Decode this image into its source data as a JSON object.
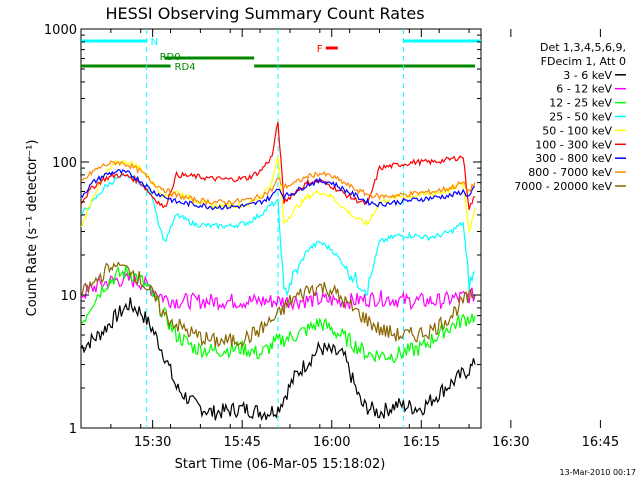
{
  "chart_data": {
    "type": "line",
    "title": "HESSI Observing Summary Count Rates",
    "xlabel": "Start Time (06-Mar-05 15:18:02)",
    "ylabel": "Count Rate (s⁻¹ detector⁻¹)",
    "yscale": "log",
    "ylim": [
      1,
      1000
    ],
    "xlim_minutes_after_start": [
      0,
      67
    ],
    "x_ticks": [
      {
        "label": "15:30",
        "minute": 12
      },
      {
        "label": "15:45",
        "minute": 27
      },
      {
        "label": "16:00",
        "minute": 42
      },
      {
        "label": "16:15",
        "minute": 57
      },
      {
        "label": "16:30",
        "minute": 72
      },
      {
        "label": "16:45",
        "minute": 87
      }
    ],
    "y_ticks": [
      {
        "label": "1",
        "value": 1
      },
      {
        "label": "10",
        "value": 10
      },
      {
        "label": "100",
        "value": 100
      },
      {
        "label": "1000",
        "value": 1000
      }
    ],
    "legend": {
      "placement": "right",
      "header": [
        "Det 1,3,4,5,6,9,",
        "FDecim 1, Att 0"
      ]
    },
    "series": [
      {
        "name": "3 - 6 keV",
        "color": "#000000",
        "x": [
          0,
          3,
          6,
          8,
          10,
          12,
          14,
          16,
          19,
          22,
          27,
          31,
          33,
          36,
          40,
          44,
          47,
          50,
          53,
          57,
          61,
          66
        ],
        "y": [
          4,
          5,
          7,
          8.5,
          7.5,
          5.5,
          3.5,
          2,
          1.5,
          1.3,
          1.4,
          1.3,
          1.4,
          2.5,
          4,
          3.5,
          1.5,
          1.3,
          1.5,
          1.4,
          2,
          3
        ]
      },
      {
        "name": "6 - 12 keV",
        "color": "#ff00ff",
        "x": [
          0,
          3,
          6,
          8,
          10,
          12,
          14,
          16,
          20,
          25,
          30,
          35,
          40,
          45,
          50,
          55,
          60,
          63,
          66
        ],
        "y": [
          10,
          12,
          13,
          13,
          12.5,
          11,
          9.5,
          9,
          9,
          9,
          9,
          9,
          9.2,
          9,
          9.5,
          9,
          9,
          9.5,
          10
        ]
      },
      {
        "name": "12 - 25 keV",
        "color": "#00ff00",
        "x": [
          0,
          2,
          4,
          6,
          8,
          10,
          12,
          14,
          16,
          19,
          22,
          27,
          30,
          33,
          36,
          38,
          40,
          42,
          45,
          48,
          52,
          57,
          61,
          64,
          66
        ],
        "y": [
          6,
          9,
          12,
          14,
          15,
          13,
          10,
          7,
          5,
          4,
          3.8,
          4,
          3.6,
          4.5,
          5,
          5.5,
          6.2,
          5.5,
          4.5,
          3.6,
          3.5,
          4,
          5.5,
          6.5,
          7
        ]
      },
      {
        "name": "25 - 50 keV",
        "color": "#00ffff",
        "x": [
          0,
          2,
          4,
          6,
          8,
          10,
          12,
          13,
          14,
          16,
          19,
          22,
          25,
          28,
          30,
          32,
          33,
          34,
          36,
          38,
          40,
          42,
          44,
          46,
          48,
          50,
          53,
          56,
          58,
          60,
          62,
          64,
          65,
          66
        ],
        "y": [
          40,
          50,
          65,
          75,
          78,
          70,
          55,
          35,
          25,
          40,
          34,
          33,
          33,
          35,
          40,
          48,
          50,
          10,
          15,
          22,
          25,
          22,
          17,
          13,
          11,
          25,
          28,
          28,
          27,
          28,
          30,
          35,
          12,
          15
        ]
      },
      {
        "name": "50 - 100 keV",
        "color": "#ffff00",
        "x": [
          0,
          2,
          4,
          6,
          8,
          10,
          12,
          14,
          16,
          19,
          22,
          25,
          28,
          30,
          32,
          33,
          34,
          36,
          38,
          40,
          42,
          44,
          46,
          48,
          50,
          53,
          56,
          59,
          62,
          64,
          65,
          66
        ],
        "y": [
          32,
          55,
          80,
          100,
          100,
          90,
          70,
          55,
          60,
          52,
          47,
          47,
          48,
          55,
          70,
          110,
          35,
          45,
          55,
          60,
          55,
          45,
          38,
          34,
          50,
          55,
          56,
          58,
          62,
          70,
          30,
          45
        ]
      },
      {
        "name": "100 - 300 keV",
        "color": "#ff0000",
        "x": [
          0,
          2,
          4,
          6,
          8,
          10,
          12,
          14,
          15,
          16,
          19,
          22,
          25,
          28,
          30,
          32,
          33,
          34,
          36,
          38,
          40,
          42,
          44,
          46,
          48,
          50,
          53,
          56,
          59,
          62,
          64,
          65,
          66
        ],
        "y": [
          50,
          65,
          75,
          80,
          78,
          70,
          55,
          45,
          60,
          80,
          78,
          75,
          74,
          76,
          85,
          110,
          200,
          50,
          60,
          70,
          72,
          66,
          58,
          52,
          48,
          90,
          95,
          100,
          100,
          105,
          110,
          45,
          55
        ]
      },
      {
        "name": "300 - 800 keV",
        "color": "#0000ff",
        "x": [
          0,
          2,
          4,
          6,
          8,
          10,
          12,
          14,
          16,
          19,
          22,
          25,
          28,
          30,
          32,
          33,
          34,
          36,
          38,
          40,
          42,
          44,
          46,
          48,
          50,
          53,
          56,
          59,
          62,
          64,
          65,
          66
        ],
        "y": [
          55,
          70,
          80,
          85,
          82,
          72,
          60,
          55,
          50,
          48,
          46,
          46,
          47,
          50,
          55,
          65,
          55,
          60,
          68,
          72,
          70,
          62,
          56,
          50,
          48,
          50,
          52,
          54,
          56,
          60,
          55,
          65
        ]
      },
      {
        "name": "800 - 7000 keV",
        "color": "#ff8800",
        "x": [
          0,
          2,
          4,
          6,
          8,
          10,
          12,
          14,
          16,
          19,
          22,
          25,
          28,
          30,
          32,
          33,
          34,
          36,
          38,
          40,
          42,
          44,
          46,
          48,
          50,
          53,
          56,
          59,
          62,
          64,
          65,
          66
        ],
        "y": [
          70,
          85,
          95,
          100,
          95,
          85,
          70,
          62,
          56,
          52,
          50,
          50,
          52,
          55,
          62,
          75,
          65,
          70,
          78,
          82,
          78,
          70,
          62,
          57,
          55,
          56,
          58,
          60,
          64,
          70,
          60,
          70
        ]
      },
      {
        "name": "7000 - 20000 keV",
        "color": "#886600",
        "x": [
          0,
          2,
          4,
          6,
          8,
          10,
          12,
          14,
          16,
          19,
          22,
          25,
          28,
          30,
          33,
          35,
          38,
          40,
          42,
          44,
          47,
          50,
          53,
          56,
          59,
          62,
          64,
          66
        ],
        "y": [
          10,
          12,
          15,
          17,
          16,
          13,
          10,
          7,
          6,
          5,
          4.5,
          4.5,
          4.8,
          5.5,
          7,
          9,
          11,
          11.5,
          11,
          9,
          7,
          5.5,
          5,
          5,
          5.5,
          7,
          9,
          10
        ]
      }
    ],
    "annotations": {
      "N": {
        "label": "N",
        "color": "#00ffff",
        "segments": [
          [
            0,
            11
          ],
          [
            54,
            67
          ]
        ]
      },
      "RD0": {
        "label": "RD0",
        "color": "#008800",
        "segments": [
          [
            14,
            29
          ]
        ]
      },
      "RD4": {
        "label": "RD4",
        "color": "#008800",
        "segments": [
          [
            0,
            15
          ],
          [
            29,
            66
          ]
        ]
      },
      "F": {
        "label": "F",
        "color": "#ff0000",
        "segments": [
          [
            41,
            43
          ]
        ]
      },
      "saa_boundaries_minutes": [
        11,
        33,
        54
      ]
    }
  },
  "footer": {
    "timestamp": "13-Mar-2010 00:17"
  }
}
